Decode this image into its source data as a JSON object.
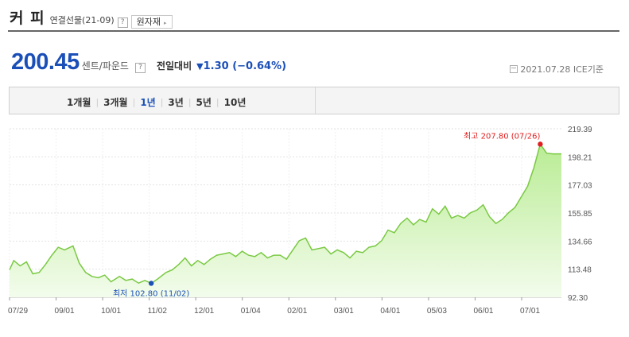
{
  "header": {
    "title": "커 피",
    "subtitle": "연결선물(21-09)",
    "help": "?",
    "raw_button": "원자재",
    "raw_arrow": "▸"
  },
  "quote": {
    "price": "200.45",
    "unit": "센트/파운드",
    "help": "?",
    "change_label": "전일대비",
    "change_arrow": "▼",
    "change_value": "1.30 (−0.64%)",
    "date": "2021.07.28",
    "source": "ICE기준"
  },
  "periods": [
    {
      "label": "1개월",
      "active": false
    },
    {
      "label": "3개월",
      "active": false
    },
    {
      "label": "1년",
      "active": true
    },
    {
      "label": "3년",
      "active": false
    },
    {
      "label": "5년",
      "active": false
    },
    {
      "label": "10년",
      "active": false
    }
  ],
  "colors": {
    "accent": "#1b4fb8",
    "line": "#7ac943",
    "fill_top": "#c6f0a6",
    "high": "#e02020",
    "low": "#1b4fb8"
  },
  "chart_data": {
    "type": "area",
    "title": "",
    "xlabel": "",
    "ylabel": "",
    "ylim": [
      92.3,
      219.39
    ],
    "yticks": [
      "219.39",
      "198.21",
      "177.03",
      "155.85",
      "134.66",
      "113.48",
      "92.30"
    ],
    "xticks": [
      "07/29",
      "09/01",
      "10/01",
      "11/02",
      "12/01",
      "01/04",
      "02/01",
      "03/01",
      "04/01",
      "05/03",
      "06/01",
      "07/01"
    ],
    "x": [
      0,
      2,
      5,
      8,
      11,
      14,
      17,
      20,
      23,
      26,
      30,
      33,
      36,
      39,
      42,
      45,
      48,
      52,
      55,
      58,
      61,
      64,
      67,
      70,
      74,
      77,
      80,
      83,
      86,
      89,
      92,
      95,
      98,
      101,
      104,
      107,
      110,
      113,
      116,
      119,
      122,
      125,
      128,
      131,
      134,
      137,
      140,
      143,
      146,
      149,
      152,
      155,
      158,
      161,
      164,
      167,
      170,
      173,
      176,
      179,
      182,
      185,
      188,
      191,
      194,
      197,
      200,
      203,
      206,
      209,
      212,
      215,
      218,
      221,
      224,
      227,
      230,
      233,
      236,
      239,
      242,
      245,
      248,
      251,
      254,
      257,
      259,
      261
    ],
    "values": [
      113,
      120,
      116,
      119,
      110,
      111,
      117,
      124,
      130,
      128,
      131,
      118,
      111,
      108,
      107,
      109,
      104,
      108,
      105,
      106,
      103,
      105,
      102.8,
      106,
      111,
      113,
      117,
      122,
      116,
      120,
      117,
      121,
      124,
      125,
      126,
      123,
      127,
      124,
      123,
      126,
      122,
      124,
      124,
      121,
      128,
      135,
      137,
      128,
      129,
      130,
      125,
      128,
      126,
      122,
      127,
      126,
      130,
      131,
      135,
      143,
      141,
      148,
      152,
      147,
      151,
      149,
      159,
      155,
      161,
      152,
      154,
      152,
      156,
      158,
      162,
      153,
      148,
      151,
      156,
      160,
      168,
      176,
      190,
      207.8,
      201,
      200.45,
      200.45,
      200.45
    ],
    "x_max": 261,
    "high": {
      "label": "최고 207.80 (07/26)",
      "value": 207.8
    },
    "low": {
      "label": "최저 102.80 (11/02)",
      "value": 102.8
    }
  }
}
